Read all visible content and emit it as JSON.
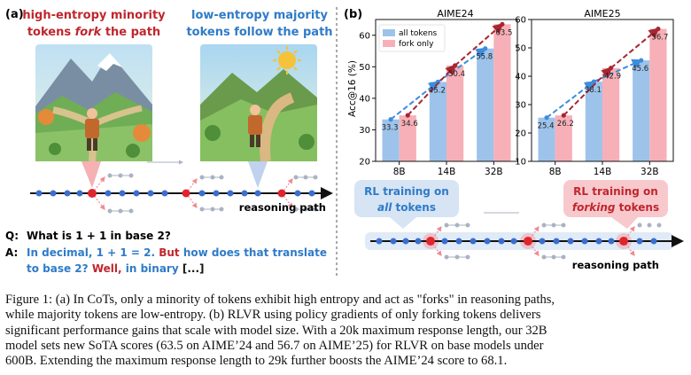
{
  "figure": {
    "panel_a": {
      "label": "(a)",
      "heading_left": [
        "high-entropy minority",
        "tokens",
        "fork",
        "the path"
      ],
      "heading_right": [
        "low-entropy majority",
        "tokens follow the path"
      ],
      "axis_label": "reasoning path",
      "qa": {
        "q_label": "Q:",
        "question": "What is 1 + 1 in base 2?",
        "a_label": "A:",
        "answer_line1": [
          "In decimal, 1 + 1 = 2.",
          "But",
          "how does that translate"
        ],
        "answer_line2": [
          "to base 2?",
          "Well,",
          "in binary",
          "[...]"
        ]
      }
    },
    "panel_b": {
      "label": "(b)",
      "rl_all": [
        "RL training on",
        "all",
        "tokens"
      ],
      "rl_fork": [
        "RL training on",
        "forking",
        "tokens"
      ],
      "axis_label": "reasoning path"
    }
  },
  "chart_data": [
    {
      "type": "bar",
      "title": "AIME24",
      "categories": [
        "8B",
        "14B",
        "32B"
      ],
      "ylabel": "Acc@16 (%)",
      "ylim": [
        20,
        65
      ],
      "yticks": [
        20,
        30,
        40,
        50,
        60
      ],
      "legend": "top-left",
      "series": [
        {
          "name": "all tokens",
          "values": [
            33.3,
            45.2,
            55.8
          ],
          "color": "#9ec3ea",
          "line_color": "#3b8ddf"
        },
        {
          "name": "fork only",
          "values": [
            34.6,
            50.4,
            63.5
          ],
          "color": "#f7b0b8",
          "line_color": "#a8262f"
        }
      ],
      "labels": [
        "33.3",
        "34.6",
        "45.2",
        "50.4",
        "55.8",
        "63.5"
      ]
    },
    {
      "type": "bar",
      "title": "AIME25",
      "categories": [
        "8B",
        "14B",
        "32B"
      ],
      "ylabel": "",
      "ylim": [
        10,
        60
      ],
      "yticks": [
        10,
        20,
        30,
        40,
        50,
        60
      ],
      "series": [
        {
          "name": "all tokens",
          "values": [
            25.4,
            38.1,
            45.6
          ],
          "color": "#9ec3ea",
          "line_color": "#3b8ddf"
        },
        {
          "name": "fork only",
          "values": [
            26.2,
            42.9,
            56.7
          ],
          "color": "#f7b0b8",
          "line_color": "#a8262f"
        }
      ],
      "labels": [
        "25.4",
        "26.2",
        "38.1",
        "42.9",
        "45.6",
        "56.7"
      ]
    }
  ],
  "colors": {
    "red": "#c0262d",
    "blue": "#2f7bc8",
    "dark": "#111111"
  },
  "caption": [
    "Figure 1: (a) In CoTs, only a minority of tokens exhibit high entropy and act as \"forks\" in reasoning paths,",
    "while majority tokens are low-entropy. (b) RLVR using policy gradients of only forking tokens delivers",
    "significant performance gains that scale with model size. With a 20k maximum response length, our 32B",
    "model sets new SoTA scores (63.5 on AIME’24 and 56.7 on AIME’25) for RLVR on base models under",
    "600B. Extending the maximum response length to 29k further boosts the AIME’24 score to 68.1."
  ]
}
